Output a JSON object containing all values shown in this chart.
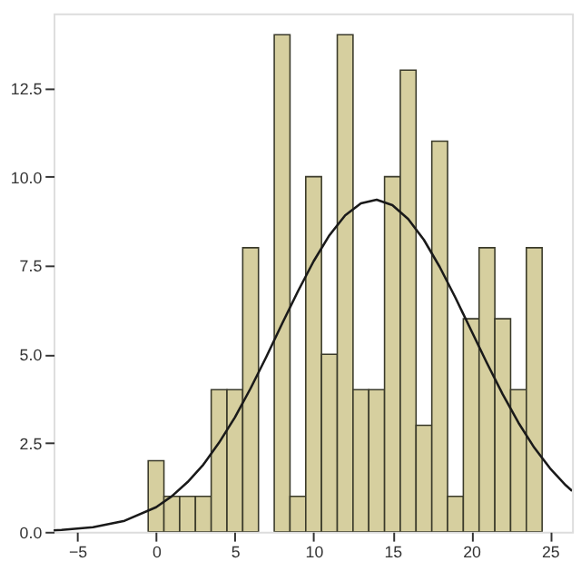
{
  "chart_data": {
    "type": "histogram",
    "bins": [
      -0.5,
      0.5,
      1.5,
      2.5,
      3.5,
      4.5,
      5.5,
      6.5,
      7.5,
      8.5,
      9.5,
      10.5,
      11.5,
      12.5,
      13.5,
      14.5,
      15.5,
      16.5,
      17.5,
      18.5,
      19.5,
      20.5,
      21.5,
      22.5,
      23.5,
      24.5
    ],
    "values": [
      2,
      1,
      1,
      1,
      4,
      4,
      8,
      0,
      14,
      1,
      10,
      5,
      14,
      4,
      4,
      10,
      13,
      3,
      11,
      1,
      6,
      8,
      6,
      4,
      8
    ],
    "color": "#d6cf9f",
    "series": [
      {
        "type": "line",
        "color": "#1a1a1a",
        "x": [
          -6.5,
          -6,
          -4,
          -2,
          0,
          1,
          2,
          3,
          4,
          5,
          6,
          7,
          8,
          9,
          10,
          11,
          12,
          13,
          14,
          15,
          16,
          17,
          18,
          19,
          20,
          21,
          22,
          23,
          24,
          25,
          26,
          26.4
        ],
        "values": [
          0.04,
          0.05,
          0.13,
          0.31,
          0.69,
          1.0,
          1.4,
          1.89,
          2.51,
          3.22,
          4.04,
          4.93,
          5.86,
          6.77,
          7.62,
          8.35,
          8.91,
          9.25,
          9.35,
          9.2,
          8.81,
          8.22,
          7.46,
          6.59,
          5.67,
          4.75,
          3.87,
          3.07,
          2.37,
          1.79,
          1.31,
          1.15
        ]
      }
    ],
    "xlim": [
      -6.5,
      26.4
    ],
    "ylim": [
      0,
      14.6
    ],
    "xticks": [
      -5,
      0,
      5,
      10,
      15,
      20,
      25
    ],
    "yticks": [
      {
        "value": 0,
        "label": "0.0"
      },
      {
        "value": 2.5,
        "label": "2.5"
      },
      {
        "value": 5,
        "label": "5.0"
      },
      {
        "value": 7.5,
        "label": "7.5"
      },
      {
        "value": 10,
        "label": "10.0"
      },
      {
        "value": 12.5,
        "label": "12.5"
      }
    ],
    "grid": false
  }
}
